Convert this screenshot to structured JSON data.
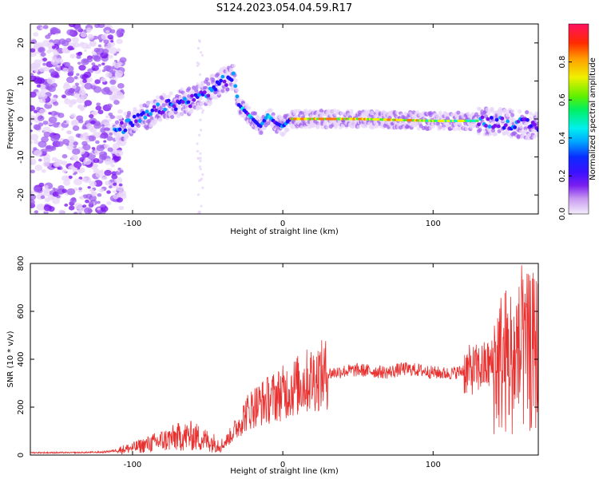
{
  "title": "S124.2023.054.04.59.R17",
  "chart_data": [
    {
      "type": "heatmap",
      "xlabel": "Height of straight line (km)",
      "ylabel": "Frequency (Hz)",
      "xlim": [
        -168,
        170
      ],
      "ylim": [
        -25,
        25
      ],
      "xticks": [
        -100,
        0,
        100
      ],
      "yticks": [
        -20,
        -10,
        0,
        10,
        20
      ],
      "colorbar": {
        "label": "Normalized spectral amplitude",
        "range": [
          0.0,
          1.0
        ],
        "ticks": [
          0.0,
          0.2,
          0.4,
          0.6,
          0.8
        ]
      },
      "ridge": [
        {
          "x": -110,
          "y": -3
        },
        {
          "x": -100,
          "y": -1
        },
        {
          "x": -90,
          "y": 1
        },
        {
          "x": -80,
          "y": 3
        },
        {
          "x": -70,
          "y": 4
        },
        {
          "x": -60,
          "y": 5
        },
        {
          "x": -50,
          "y": 7
        },
        {
          "x": -40,
          "y": 10
        },
        {
          "x": -33,
          "y": 11
        },
        {
          "x": -30,
          "y": 4
        },
        {
          "x": -25,
          "y": 2
        },
        {
          "x": -20,
          "y": 0
        },
        {
          "x": -15,
          "y": -2
        },
        {
          "x": -10,
          "y": 1
        },
        {
          "x": -5,
          "y": -1
        },
        {
          "x": 0,
          "y": -2
        },
        {
          "x": 5,
          "y": 0
        },
        {
          "x": 50,
          "y": 0
        },
        {
          "x": 100,
          "y": -0.5
        },
        {
          "x": 130,
          "y": -0.5
        },
        {
          "x": 150,
          "y": -1
        },
        {
          "x": 170,
          "y": -2
        }
      ]
    },
    {
      "type": "line",
      "xlabel": "Height of straight line (km)",
      "ylabel": "SNR (10 * v/v)",
      "xlim": [
        -168,
        170
      ],
      "ylim": [
        0,
        800
      ],
      "xticks": [
        -100,
        0,
        100
      ],
      "yticks": [
        0,
        200,
        400,
        600,
        800
      ],
      "color": "#e8302f",
      "series": [
        {
          "x": [
            -168,
            -140,
            -120,
            -110,
            -100,
            -90,
            -80,
            -70,
            -60,
            -50,
            -40,
            -30,
            -25,
            -20,
            -10,
            0,
            10,
            20,
            30,
            40,
            50,
            60,
            70,
            80,
            90,
            100,
            110,
            120,
            130,
            140,
            150,
            160,
            170
          ],
          "y": [
            10,
            10,
            12,
            20,
            30,
            45,
            60,
            75,
            80,
            60,
            40,
            120,
            170,
            200,
            230,
            260,
            290,
            320,
            340,
            350,
            355,
            350,
            345,
            360,
            355,
            345,
            340,
            350,
            360,
            380,
            400,
            420,
            430
          ]
        }
      ]
    }
  ]
}
